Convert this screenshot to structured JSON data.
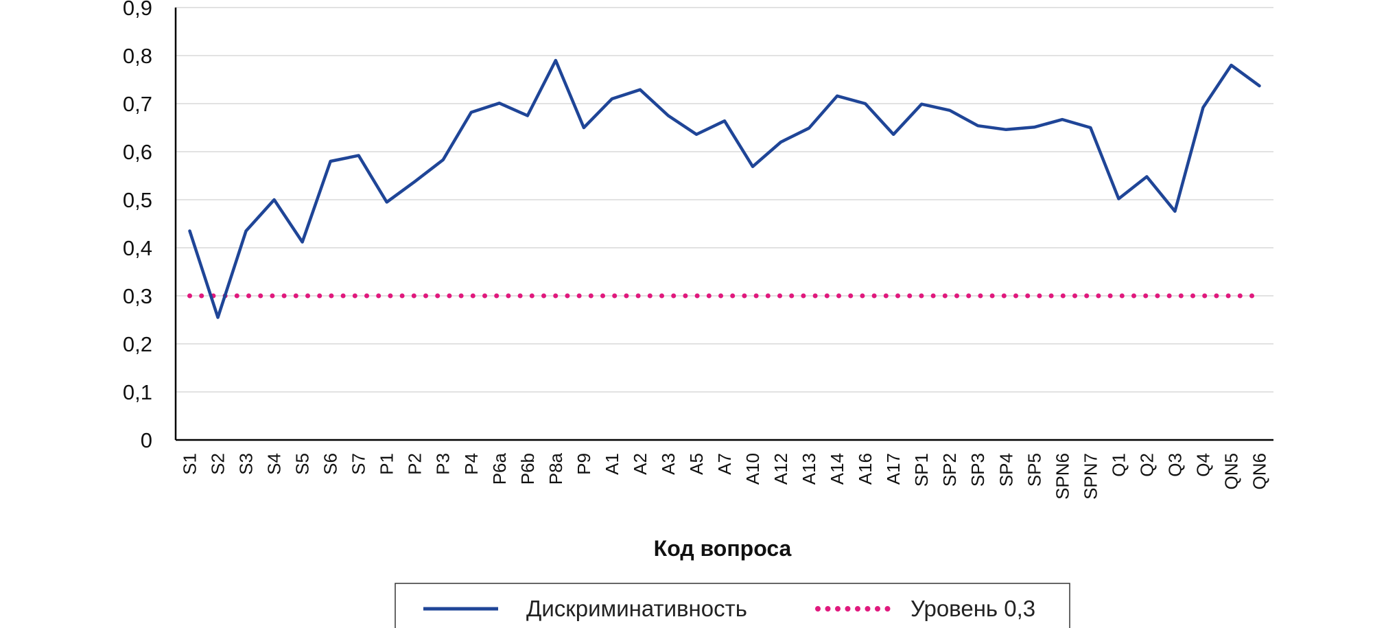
{
  "chart_data": {
    "type": "line",
    "xlabel": "Код вопроса",
    "ylabel": "",
    "ylim": [
      0,
      0.9
    ],
    "yticks": [
      "0",
      "0,1",
      "0,2",
      "0,3",
      "0,4",
      "0,5",
      "0,6",
      "0,7",
      "0,8",
      "0,9"
    ],
    "grid": true,
    "legend_position": "bottom",
    "categories": [
      "S1",
      "S2",
      "S3",
      "S4",
      "S5",
      "S6",
      "S7",
      "P1",
      "P2",
      "P3",
      "P4",
      "P6a",
      "P6b",
      "P8a",
      "P9",
      "A1",
      "A2",
      "A3",
      "A5",
      "A7",
      "A10",
      "A12",
      "A13",
      "A14",
      "A16",
      "A17",
      "SP1",
      "SP2",
      "SP3",
      "SP4",
      "SP5",
      "SPN6",
      "SPN7",
      "Q1",
      "Q2",
      "Q3",
      "Q4",
      "QN5",
      "QN6"
    ],
    "series": [
      {
        "name": "Дискриминативность",
        "color": "#1f4597",
        "style": "solid",
        "values": [
          0.435,
          0.255,
          0.435,
          0.5,
          0.412,
          0.58,
          0.592,
          0.495,
          0.538,
          0.583,
          0.682,
          0.701,
          0.675,
          0.79,
          0.65,
          0.71,
          0.729,
          0.675,
          0.636,
          0.664,
          0.569,
          0.62,
          0.649,
          0.716,
          0.7,
          0.636,
          0.699,
          0.686,
          0.654,
          0.646,
          0.651,
          0.667,
          0.65,
          0.502,
          0.548,
          0.476,
          0.692,
          0.78,
          0.737
        ]
      },
      {
        "name": "Уровень 0,3",
        "color": "#e0197d",
        "style": "dotted",
        "values": [
          0.3,
          0.3,
          0.3,
          0.3,
          0.3,
          0.3,
          0.3,
          0.3,
          0.3,
          0.3,
          0.3,
          0.3,
          0.3,
          0.3,
          0.3,
          0.3,
          0.3,
          0.3,
          0.3,
          0.3,
          0.3,
          0.3,
          0.3,
          0.3,
          0.3,
          0.3,
          0.3,
          0.3,
          0.3,
          0.3,
          0.3,
          0.3,
          0.3,
          0.3,
          0.3,
          0.3,
          0.3,
          0.3,
          0.3
        ]
      }
    ]
  }
}
